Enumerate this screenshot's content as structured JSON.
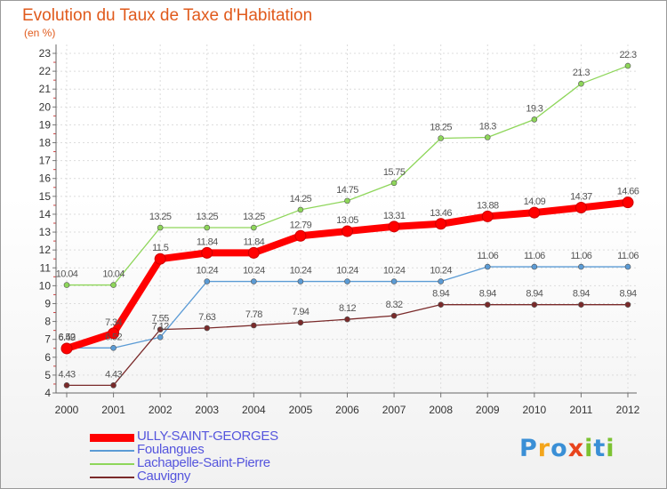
{
  "title": "Evolution du Taux de Taxe d'Habitation",
  "unit_label": "(en %)",
  "logo": {
    "text": "Proxiti",
    "letter_colors": [
      "#3a8fd6",
      "#f3a51c",
      "#3a8fd6",
      "#e8441d",
      "#7cc232",
      "#3a8fd6",
      "#7cc232"
    ]
  },
  "chart_data": {
    "type": "line",
    "title": "Evolution du Taux de Taxe d'Habitation",
    "ylabel": "(en %)",
    "xlabel": "",
    "x": [
      "2000",
      "2001",
      "2002",
      "2003",
      "2004",
      "2005",
      "2006",
      "2007",
      "2008",
      "2009",
      "2010",
      "2011",
      "2012"
    ],
    "ylim": [
      4,
      23
    ],
    "yticks": [
      4,
      5,
      6,
      7,
      8,
      9,
      10,
      11,
      12,
      13,
      14,
      15,
      16,
      17,
      18,
      19,
      20,
      21,
      22,
      23
    ],
    "grid": true,
    "legend_position": "bottom-left",
    "series": [
      {
        "name": "ULLY-SAINT-GEORGES",
        "color": "#ff0000",
        "emphasis": true,
        "values": [
          6.49,
          7.34,
          11.5,
          11.84,
          11.84,
          12.79,
          13.05,
          13.31,
          13.46,
          13.88,
          14.09,
          14.37,
          14.66
        ],
        "labels": [
          "6.49",
          "7.34",
          "11.5",
          "11.84",
          "11.84",
          "12.79",
          "13.05",
          "13.31",
          "13.46",
          "13.88",
          "14.09",
          "14.37",
          "14.66"
        ]
      },
      {
        "name": "Foulangues",
        "color": "#5b9bd5",
        "emphasis": false,
        "values": [
          6.52,
          6.52,
          7.12,
          10.24,
          10.24,
          10.24,
          10.24,
          10.24,
          10.24,
          11.06,
          11.06,
          11.06,
          11.06
        ],
        "labels": [
          "6.52",
          "6.52",
          "7.12",
          "10.24",
          "10.24",
          "10.24",
          "10.24",
          "10.24",
          "10.24",
          "11.06",
          "11.06",
          "11.06",
          "11.06"
        ]
      },
      {
        "name": "Lachapelle-Saint-Pierre",
        "color": "#8ed65a",
        "emphasis": false,
        "values": [
          10.04,
          10.04,
          13.25,
          13.25,
          13.25,
          14.25,
          14.75,
          15.75,
          18.25,
          18.3,
          19.3,
          21.3,
          22.3
        ],
        "labels": [
          "10.04",
          "10.04",
          "13.25",
          "13.25",
          "13.25",
          "14.25",
          "14.75",
          "15.75",
          "18.25",
          "18.3",
          "19.3",
          "21.3",
          "22.3"
        ]
      },
      {
        "name": "Cauvigny",
        "color": "#7a2a2a",
        "emphasis": false,
        "values": [
          4.43,
          4.43,
          7.55,
          7.63,
          7.78,
          7.94,
          8.12,
          8.32,
          8.94,
          8.94,
          8.94,
          8.94,
          8.94
        ],
        "labels": [
          "4.43",
          "4.43",
          "7.55",
          "7.63",
          "7.78",
          "7.94",
          "8.12",
          "8.32",
          "8.94",
          "8.94",
          "8.94",
          "8.94",
          "8.94"
        ]
      }
    ]
  }
}
